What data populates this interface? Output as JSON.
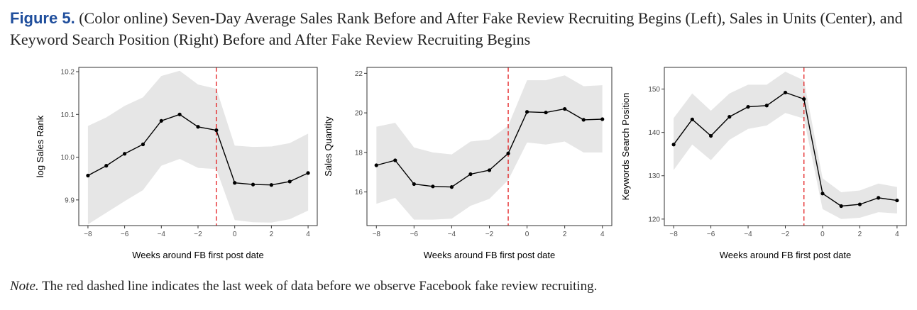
{
  "caption": {
    "label": "Figure 5.",
    "text": "(Color online) Seven-Day Average Sales Rank Before and After Fake Review Recruiting Begins (Left), Sales in Units (Center), and Keyword Search Position (Right) Before and After Fake Review Recruiting Begins"
  },
  "note": {
    "label": "Note.",
    "text": "The red dashed line indicates the last week of data before we observe Facebook fake review recruiting."
  },
  "chart_data": [
    {
      "type": "line",
      "title": "",
      "xlabel": "Weeks around FB first post date",
      "ylabel": "log Sales Rank",
      "x": [
        -8,
        -7,
        -6,
        -5,
        -4,
        -3,
        -2,
        -1,
        0,
        1,
        2,
        3,
        4
      ],
      "values": [
        9.957,
        9.98,
        10.008,
        10.03,
        10.085,
        10.1,
        10.071,
        10.063,
        9.94,
        9.936,
        9.935,
        9.943,
        9.963
      ],
      "lower": [
        9.843,
        9.87,
        9.897,
        9.923,
        9.98,
        9.996,
        9.975,
        9.972,
        9.853,
        9.848,
        9.847,
        9.855,
        9.875
      ],
      "upper": [
        10.073,
        10.093,
        10.12,
        10.14,
        10.19,
        10.202,
        10.17,
        10.16,
        10.027,
        10.024,
        10.025,
        10.033,
        10.055
      ],
      "xlim": [
        -8.5,
        4.5
      ],
      "ylim": [
        9.84,
        10.21
      ],
      "xticks": [
        -8,
        -6,
        -4,
        -2,
        0,
        2,
        4
      ],
      "xtick_labels": [
        "−8",
        "−6",
        "−4",
        "−2",
        "0",
        "2",
        "4"
      ],
      "yticks": [
        9.9,
        10.0,
        10.1,
        10.2
      ],
      "ytick_labels": [
        "9.9",
        "10.0",
        "10.1",
        "10.2"
      ],
      "vline_x": -1,
      "colors": {
        "line": "#000000",
        "band": "#e6e6e6",
        "vline": "#e41a1c",
        "frame": "#333333"
      }
    },
    {
      "type": "line",
      "title": "",
      "xlabel": "Weeks around FB first post date",
      "ylabel": "Sales Quantity",
      "x": [
        -8,
        -7,
        -6,
        -5,
        -4,
        -3,
        -2,
        -1,
        0,
        1,
        2,
        3,
        4
      ],
      "values": [
        17.35,
        17.6,
        16.4,
        16.28,
        16.25,
        16.9,
        17.1,
        17.95,
        20.05,
        20.02,
        20.2,
        19.65,
        19.68
      ],
      "lower": [
        15.4,
        15.7,
        14.6,
        14.6,
        14.65,
        15.3,
        15.65,
        16.6,
        18.5,
        18.4,
        18.55,
        18.0,
        18.0
      ],
      "upper": [
        19.3,
        19.5,
        18.25,
        18.0,
        17.9,
        18.55,
        18.65,
        19.35,
        21.65,
        21.65,
        21.9,
        21.35,
        21.4
      ],
      "xlim": [
        -8.5,
        4.5
      ],
      "ylim": [
        14.3,
        22.3
      ],
      "xticks": [
        -8,
        -6,
        -4,
        -2,
        0,
        2,
        4
      ],
      "xtick_labels": [
        "−8",
        "−6",
        "−4",
        "−2",
        "0",
        "2",
        "4"
      ],
      "yticks": [
        16,
        18,
        20,
        22
      ],
      "ytick_labels": [
        "16",
        "18",
        "20",
        "22"
      ],
      "vline_x": -1,
      "colors": {
        "line": "#000000",
        "band": "#e6e6e6",
        "vline": "#e41a1c",
        "frame": "#333333"
      }
    },
    {
      "type": "line",
      "title": "",
      "xlabel": "Weeks around FB first post date",
      "ylabel": "Keywords Search Position",
      "x": [
        -8,
        -7,
        -6,
        -5,
        -4,
        -3,
        -2,
        -1,
        0,
        1,
        2,
        3,
        4
      ],
      "values": [
        137.2,
        143.0,
        139.2,
        143.6,
        145.9,
        146.2,
        149.2,
        147.7,
        125.9,
        123.0,
        123.4,
        124.9,
        124.3
      ],
      "lower": [
        131.3,
        137.2,
        133.6,
        138.3,
        140.8,
        141.6,
        144.5,
        143.2,
        122.3,
        120.0,
        120.3,
        121.6,
        121.3
      ],
      "upper": [
        143.3,
        149.0,
        145.0,
        149.0,
        151.0,
        151.0,
        154.0,
        152.0,
        129.4,
        126.2,
        126.6,
        128.2,
        127.4
      ],
      "xlim": [
        -8.5,
        4.5
      ],
      "ylim": [
        118.5,
        155.0
      ],
      "xticks": [
        -8,
        -6,
        -4,
        -2,
        0,
        2,
        4
      ],
      "xtick_labels": [
        "−8",
        "−6",
        "−4",
        "−2",
        "0",
        "2",
        "4"
      ],
      "yticks": [
        120,
        130,
        140,
        150
      ],
      "ytick_labels": [
        "120",
        "130",
        "140",
        "150"
      ],
      "vline_x": -1,
      "colors": {
        "line": "#000000",
        "band": "#e6e6e6",
        "vline": "#e41a1c",
        "frame": "#333333"
      }
    }
  ]
}
